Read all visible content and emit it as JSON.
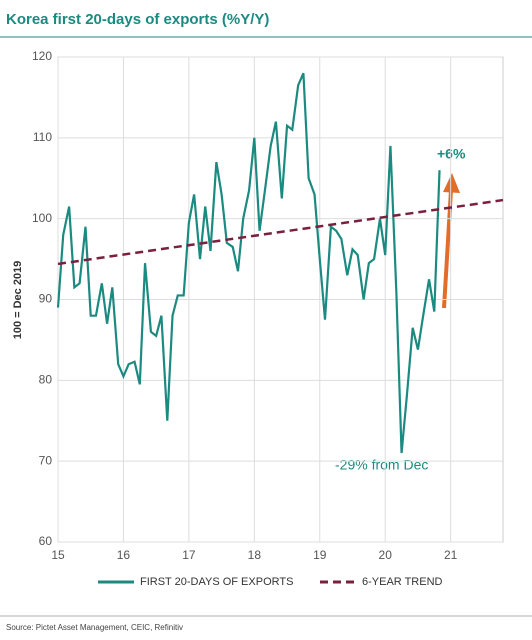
{
  "chart_data": {
    "type": "line",
    "title": "Korea first 20-days of exports (%Y/Y)",
    "ylabel": "100 = Dec 2019",
    "source": "Source: Pictet Asset Management, CEIC, Refinitiv",
    "annotations": [
      "+6%",
      "-29% from Dec"
    ],
    "xlim": [
      15,
      21.8
    ],
    "ylim": [
      60,
      120
    ],
    "xticks": [
      15,
      16,
      17,
      18,
      19,
      20,
      21
    ],
    "yticks": [
      60,
      70,
      80,
      90,
      100,
      110,
      120
    ],
    "grid": true,
    "series": [
      {
        "name": "FIRST 20-DAYS OF EXPORTS",
        "color": "#1b8a80",
        "dash": false,
        "x": [
          15,
          15.08,
          15.17,
          15.25,
          15.33,
          15.42,
          15.5,
          15.58,
          15.67,
          15.75,
          15.83,
          15.92,
          16,
          16.08,
          16.17,
          16.25,
          16.33,
          16.42,
          16.5,
          16.58,
          16.67,
          16.75,
          16.83,
          16.92,
          17,
          17.08,
          17.17,
          17.25,
          17.33,
          17.42,
          17.5,
          17.58,
          17.67,
          17.75,
          17.83,
          17.92,
          18,
          18.08,
          18.17,
          18.25,
          18.33,
          18.42,
          18.5,
          18.58,
          18.67,
          18.75,
          18.83,
          18.92,
          19,
          19.08,
          19.17,
          19.25,
          19.33,
          19.42,
          19.5,
          19.58,
          19.67,
          19.75,
          19.83,
          19.92,
          20,
          20.08,
          20.17,
          20.25,
          20.33,
          20.42,
          20.5,
          20.58,
          20.67,
          20.75,
          20.83
        ],
        "values": [
          89,
          98,
          101.5,
          91.5,
          92,
          99,
          88,
          88,
          92,
          87,
          91.5,
          82,
          80.5,
          82,
          82.3,
          79.5,
          94.5,
          86,
          85.5,
          88,
          75,
          88,
          90.5,
          90.5,
          99.5,
          103,
          95,
          101.5,
          96,
          107,
          103,
          97,
          96.5,
          93.5,
          100,
          103.5,
          110,
          98.5,
          104,
          109,
          112,
          102.5,
          111.5,
          111,
          116.5,
          118,
          105,
          103,
          95,
          87.5,
          99,
          98.5,
          97.5,
          93,
          96.2,
          95.5,
          90,
          94.5,
          95,
          100,
          95.5,
          109,
          91,
          71,
          78,
          86.5,
          83.8,
          88,
          92.5,
          88.5,
          106
        ]
      },
      {
        "name": "6-YEAR TREND",
        "color": "#7a1f3d",
        "dash": true,
        "x": [
          15,
          21.8
        ],
        "values": [
          94.4,
          102.3
        ]
      }
    ]
  }
}
